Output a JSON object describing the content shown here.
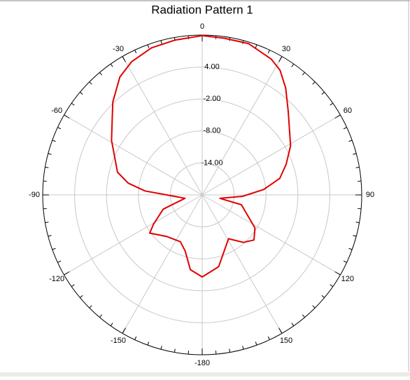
{
  "chart_data": {
    "type": "polar",
    "title": "Radiation Pattern 1",
    "rlim": [
      -20,
      10
    ],
    "rticks": [
      {
        "value": -14,
        "label": "-14.00"
      },
      {
        "value": -8,
        "label": "-8.00"
      },
      {
        "value": -2,
        "label": "-2.00"
      },
      {
        "value": 4,
        "label": "4.00"
      }
    ],
    "thetaticks": [
      0,
      30,
      60,
      90,
      120,
      150,
      -180,
      -150,
      -120,
      -90,
      -60,
      -30
    ],
    "grid": true,
    "series": [
      {
        "color": "#e00000",
        "x": [
          -171,
          -163,
          -155,
          -139,
          -126,
          -121,
          -110,
          -101,
          -86,
          -81,
          -75,
          -59,
          -44,
          -35,
          -28,
          -19,
          -10,
          0,
          8,
          17,
          27,
          32,
          38,
          46,
          61,
          70,
          78,
          85,
          92,
          101,
          104,
          122,
          131,
          139,
          149,
          167,
          170,
          180
        ],
        "values": [
          -5.8,
          -9.0,
          -10.3,
          -9.7,
          -7.8,
          -9.3,
          -12.2,
          -16.7,
          -9.2,
          -5.9,
          -3.5,
          -0.1,
          4.2,
          7.0,
          8.3,
          9.2,
          9.5,
          9.9,
          9.7,
          9.7,
          8.6,
          7.6,
          5.5,
          2.5,
          -1.0,
          -3.2,
          -5.1,
          -8.4,
          -12.4,
          -16.6,
          -12.4,
          -8.3,
          -7.1,
          -8.2,
          -10.4,
          -6.2,
          -5.9,
          -4.6
        ]
      }
    ]
  }
}
